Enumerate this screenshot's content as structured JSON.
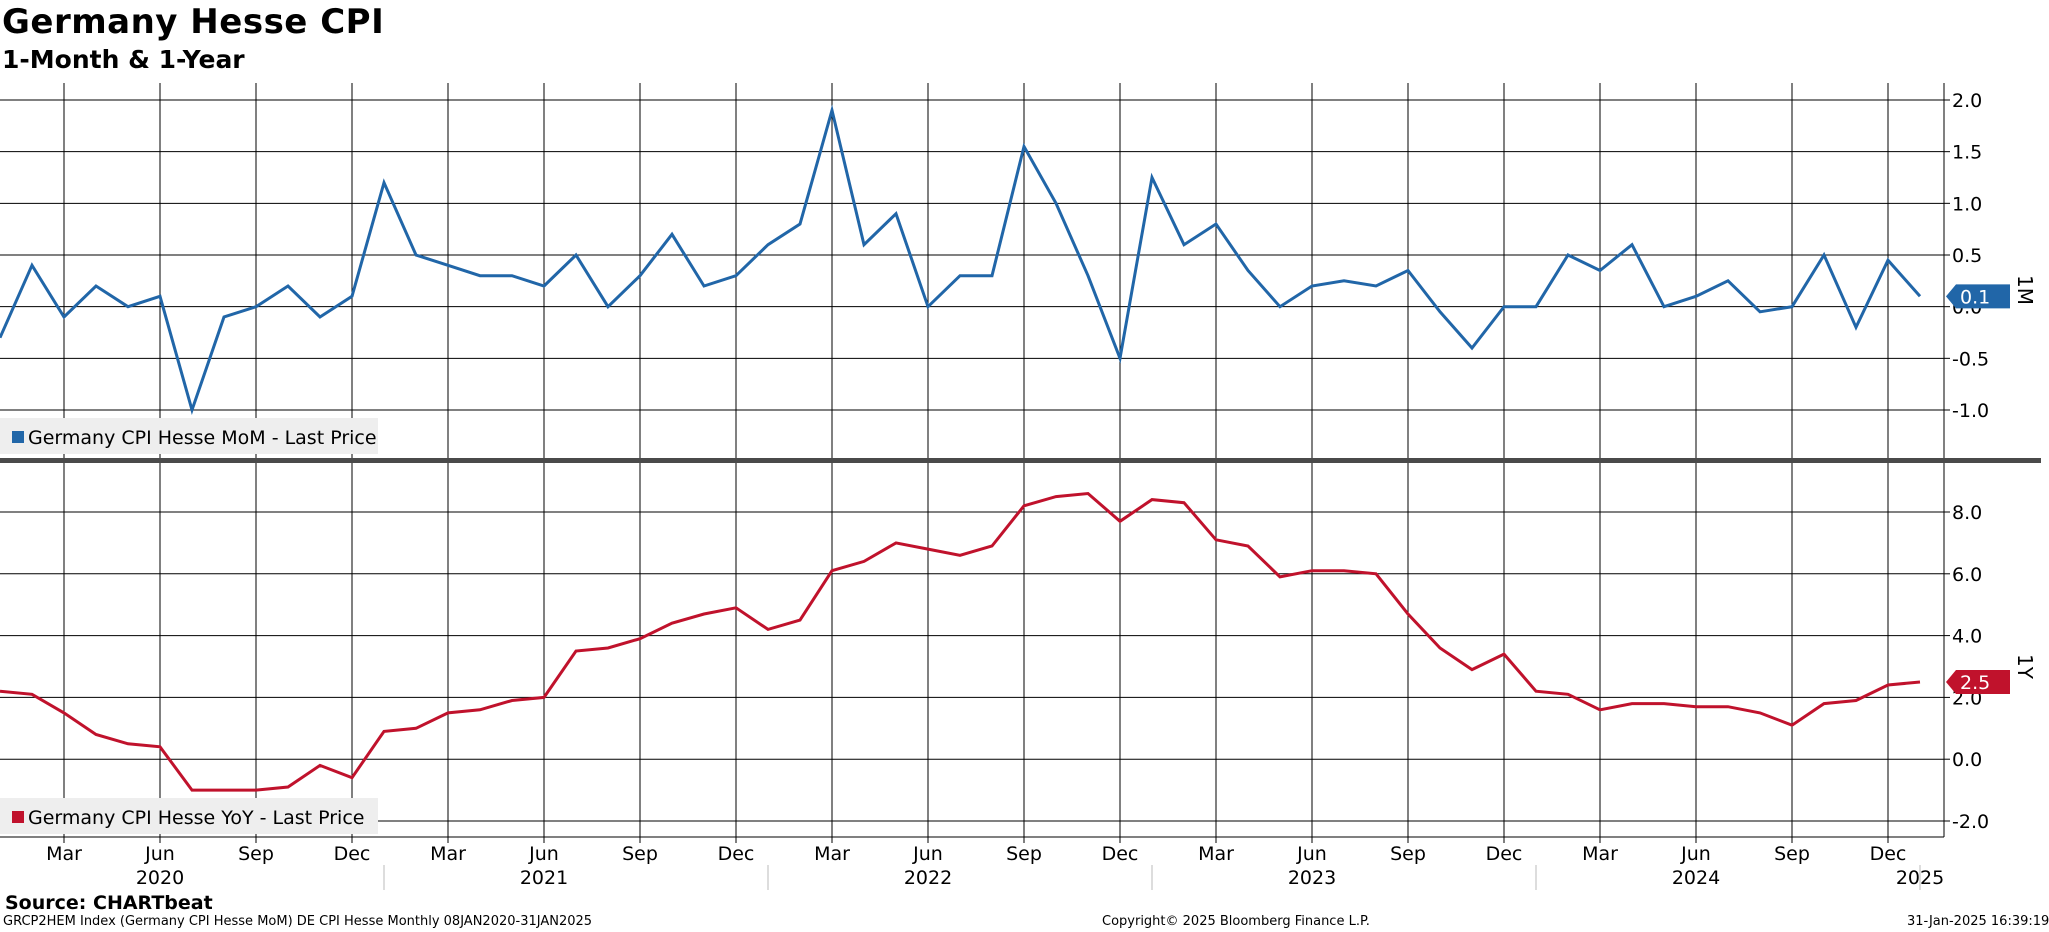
{
  "header": {
    "title": "Germany Hesse CPI",
    "subtitle": "1-Month & 1-Year"
  },
  "footer": {
    "source": "Source: CHARTbeat",
    "index_info": "GRCP2HEM Index (Germany CPI Hesse MoM) DE CPI Hesse  Monthly 08JAN2020-31JAN2025",
    "copyright": "Copyright© 2025 Bloomberg Finance L.P.",
    "timestamp": "31-Jan-2025 16:39:19"
  },
  "colors": {
    "mom": "#2166a8",
    "yoy": "#c0122c",
    "grid": "#000000",
    "separator": "#4a4a4a",
    "legend_bg": "#eeeeee"
  },
  "chart_data": [
    {
      "type": "line",
      "axis_tag": "1M",
      "legend": "Germany CPI Hesse MoM - Last Price",
      "last_value_label": "0.1",
      "color": "#2166a8",
      "ylim": [
        -1.4,
        2.2
      ],
      "y_ticks": [
        2.0,
        1.5,
        1.0,
        0.5,
        0.0,
        -0.5,
        -1.0
      ],
      "y_tick_labels": [
        "2.0",
        "1.5",
        "1.0",
        "0.5",
        "0.0",
        "-0.5",
        "-1.0"
      ],
      "grid": true,
      "legend_position": "bottom-left",
      "series": [
        {
          "name": "Germany CPI Hesse MoM - Last Price",
          "x": [
            "2020-01",
            "2020-02",
            "2020-03",
            "2020-04",
            "2020-05",
            "2020-06",
            "2020-07",
            "2020-08",
            "2020-09",
            "2020-10",
            "2020-11",
            "2020-12",
            "2021-01",
            "2021-02",
            "2021-03",
            "2021-04",
            "2021-05",
            "2021-06",
            "2021-07",
            "2021-08",
            "2021-09",
            "2021-10",
            "2021-11",
            "2021-12",
            "2022-01",
            "2022-02",
            "2022-03",
            "2022-04",
            "2022-05",
            "2022-06",
            "2022-07",
            "2022-08",
            "2022-09",
            "2022-10",
            "2022-11",
            "2022-12",
            "2023-01",
            "2023-02",
            "2023-03",
            "2023-04",
            "2023-05",
            "2023-06",
            "2023-07",
            "2023-08",
            "2023-09",
            "2023-10",
            "2023-11",
            "2023-12",
            "2024-01",
            "2024-02",
            "2024-03",
            "2024-04",
            "2024-05",
            "2024-06",
            "2024-07",
            "2024-08",
            "2024-09",
            "2024-10",
            "2024-11",
            "2024-12",
            "2025-01"
          ],
          "values": [
            -0.3,
            0.4,
            -0.1,
            0.2,
            0.0,
            0.1,
            -1.0,
            -0.1,
            0.0,
            0.2,
            -0.1,
            0.1,
            1.2,
            0.5,
            0.4,
            0.3,
            0.3,
            0.2,
            0.5,
            0.0,
            0.3,
            0.7,
            0.2,
            0.3,
            0.6,
            0.8,
            1.9,
            0.6,
            0.9,
            0.0,
            0.3,
            0.3,
            1.55,
            1.0,
            0.3,
            -0.5,
            1.25,
            0.6,
            0.8,
            0.35,
            0.0,
            0.2,
            0.25,
            0.2,
            0.35,
            -0.05,
            -0.4,
            0.0,
            0.0,
            0.5,
            0.35,
            0.6,
            0.0,
            0.1,
            0.25,
            -0.05,
            0.0,
            0.5,
            -0.2,
            0.45,
            0.1
          ]
        }
      ]
    },
    {
      "type": "line",
      "axis_tag": "1Y",
      "legend": "Germany CPI Hesse YoY - Last Price",
      "last_value_label": "2.5",
      "color": "#c0122c",
      "ylim": [
        -2.6,
        9.6
      ],
      "y_ticks": [
        8.0,
        6.0,
        4.0,
        2.0,
        0.0,
        -2.0
      ],
      "y_tick_labels": [
        "8.0",
        "6.0",
        "4.0",
        "2.0",
        "0.0",
        "-2.0"
      ],
      "grid": true,
      "legend_position": "bottom-left",
      "series": [
        {
          "name": "Germany CPI Hesse YoY - Last Price",
          "x": [
            "2020-01",
            "2020-02",
            "2020-03",
            "2020-04",
            "2020-05",
            "2020-06",
            "2020-07",
            "2020-08",
            "2020-09",
            "2020-10",
            "2020-11",
            "2020-12",
            "2021-01",
            "2021-02",
            "2021-03",
            "2021-04",
            "2021-05",
            "2021-06",
            "2021-07",
            "2021-08",
            "2021-09",
            "2021-10",
            "2021-11",
            "2021-12",
            "2022-01",
            "2022-02",
            "2022-03",
            "2022-04",
            "2022-05",
            "2022-06",
            "2022-07",
            "2022-08",
            "2022-09",
            "2022-10",
            "2022-11",
            "2022-12",
            "2023-01",
            "2023-02",
            "2023-03",
            "2023-04",
            "2023-05",
            "2023-06",
            "2023-07",
            "2023-08",
            "2023-09",
            "2023-10",
            "2023-11",
            "2023-12",
            "2024-01",
            "2024-02",
            "2024-03",
            "2024-04",
            "2024-05",
            "2024-06",
            "2024-07",
            "2024-08",
            "2024-09",
            "2024-10",
            "2024-11",
            "2024-12",
            "2025-01"
          ],
          "values": [
            2.2,
            2.1,
            1.5,
            0.8,
            0.5,
            0.4,
            -1.0,
            -1.0,
            -1.0,
            -0.9,
            -0.2,
            -0.6,
            0.9,
            1.0,
            1.5,
            1.6,
            1.9,
            2.0,
            3.5,
            3.6,
            3.9,
            4.4,
            4.7,
            4.9,
            4.2,
            4.5,
            6.1,
            6.4,
            7.0,
            6.8,
            6.6,
            6.9,
            8.2,
            8.5,
            8.6,
            7.7,
            8.4,
            8.3,
            7.1,
            6.9,
            5.9,
            6.1,
            6.1,
            6.0,
            4.7,
            3.6,
            2.9,
            3.4,
            2.2,
            2.1,
            1.6,
            1.8,
            1.8,
            1.7,
            1.7,
            1.5,
            1.1,
            1.8,
            1.9,
            2.4,
            2.5
          ]
        }
      ]
    }
  ],
  "x_axis": {
    "month_ticks": [
      {
        "date": "2020-03",
        "label": "Mar"
      },
      {
        "date": "2020-06",
        "label": "Jun"
      },
      {
        "date": "2020-09",
        "label": "Sep"
      },
      {
        "date": "2020-12",
        "label": "Dec"
      },
      {
        "date": "2021-03",
        "label": "Mar"
      },
      {
        "date": "2021-06",
        "label": "Jun"
      },
      {
        "date": "2021-09",
        "label": "Sep"
      },
      {
        "date": "2021-12",
        "label": "Dec"
      },
      {
        "date": "2022-03",
        "label": "Mar"
      },
      {
        "date": "2022-06",
        "label": "Jun"
      },
      {
        "date": "2022-09",
        "label": "Sep"
      },
      {
        "date": "2022-12",
        "label": "Dec"
      },
      {
        "date": "2023-03",
        "label": "Mar"
      },
      {
        "date": "2023-06",
        "label": "Jun"
      },
      {
        "date": "2023-09",
        "label": "Sep"
      },
      {
        "date": "2023-12",
        "label": "Dec"
      },
      {
        "date": "2024-03",
        "label": "Mar"
      },
      {
        "date": "2024-06",
        "label": "Jun"
      },
      {
        "date": "2024-09",
        "label": "Sep"
      },
      {
        "date": "2024-12",
        "label": "Dec"
      }
    ],
    "year_labels": [
      {
        "date": "2020-06",
        "label": "2020"
      },
      {
        "date": "2021-06",
        "label": "2021"
      },
      {
        "date": "2022-06",
        "label": "2022"
      },
      {
        "date": "2023-06",
        "label": "2023"
      },
      {
        "date": "2024-06",
        "label": "2024"
      },
      {
        "date": "2025-01",
        "label": "2025"
      }
    ]
  }
}
